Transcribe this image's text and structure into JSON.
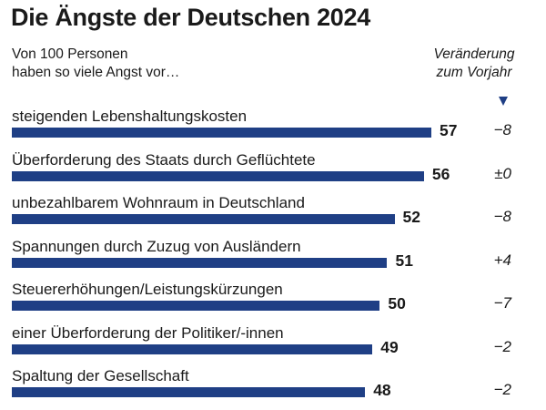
{
  "chart_data": {
    "type": "bar",
    "title": "Die Ängste der Deutschen 2024",
    "subtitle": [
      "Von 100 Personen",
      "haben so viele Angst vor…"
    ],
    "change_header": [
      "Veränderung",
      "zum Vorjahr"
    ],
    "categories": [
      "steigenden Lebenshaltungskosten",
      "Überforderung des Staats durch Geflüchtete",
      "unbezahlbarem Wohnraum in Deutschland",
      "Spannungen durch Zuzug von Ausländern",
      "Steuererhöhungen/Leistungskürzungen",
      "einer Überforderung der Politiker/-innen",
      "Spaltung der Gesellschaft"
    ],
    "values": [
      57,
      56,
      52,
      51,
      50,
      49,
      48
    ],
    "changes": [
      "−8",
      "±0",
      "−8",
      "+4",
      "−7",
      "−2",
      "−2"
    ],
    "colors": {
      "bar": "#1f3f85"
    }
  }
}
